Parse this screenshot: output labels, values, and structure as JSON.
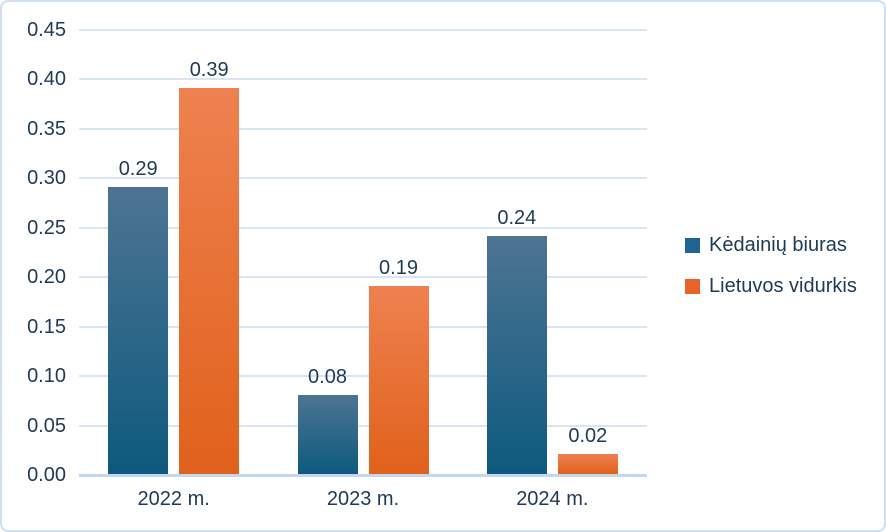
{
  "chart_data": {
    "type": "bar",
    "categories": [
      "2022 m.",
      "2023 m.",
      "2024 m."
    ],
    "series": [
      {
        "name": "Kėdainių biuras",
        "values": [
          0.29,
          0.08,
          0.24
        ],
        "data_labels": [
          "0.29",
          "0.08",
          "0.24"
        ],
        "color": "#1f6593",
        "gradient_top": "#4e7492",
        "gradient_bottom": "#0d5a7e"
      },
      {
        "name": "Lietuvos vidurkis",
        "values": [
          0.39,
          0.19,
          0.02
        ],
        "data_labels": [
          "0.39",
          "0.19",
          "0.02"
        ],
        "color": "#e8622a",
        "gradient_top": "#ef8150",
        "gradient_bottom": "#e0611b"
      }
    ],
    "title": "",
    "xlabel": "",
    "ylabel": "",
    "ylim": [
      0,
      0.45
    ],
    "ytick_step": 0.05,
    "ytick_labels": [
      "0.00",
      "0.05",
      "0.10",
      "0.15",
      "0.20",
      "0.25",
      "0.30",
      "0.35",
      "0.40",
      "0.45"
    ],
    "grid": true,
    "legend_position": "right"
  },
  "colors": {
    "text": "#1f3a57",
    "gridline": "#d9e5f4",
    "axis_line": "#c3d8ee",
    "border": "#cfe0f2",
    "background": "#ffffff"
  }
}
